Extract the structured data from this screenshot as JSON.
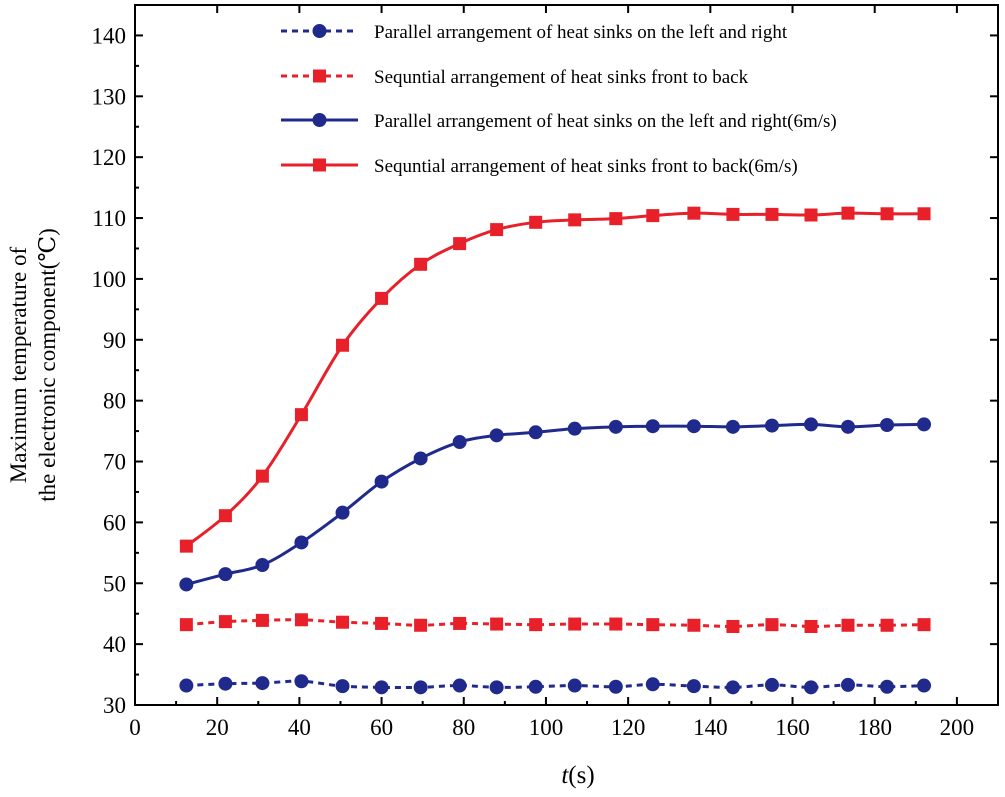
{
  "chart_data": {
    "type": "line",
    "title": "",
    "xlabel_italic": "t",
    "xlabel_unit": "(s)",
    "ylabel_line1": "Maximum temperature of",
    "ylabel_line2": "the electronic component(℃)",
    "xlim": [
      0,
      210
    ],
    "ylim": [
      30,
      145
    ],
    "xticks": [
      0,
      20,
      40,
      60,
      80,
      100,
      120,
      140,
      160,
      180,
      200
    ],
    "yticks": [
      30,
      40,
      50,
      60,
      70,
      80,
      90,
      100,
      110,
      120,
      130,
      140
    ],
    "legend_position": "top-right",
    "series": [
      {
        "name": "Parallel arrangement of heat sinks on the left and right",
        "color": "#1f2a8c",
        "line": "dashed",
        "marker": "circle",
        "x": [
          12.5,
          22,
          31,
          40.5,
          50.5,
          60,
          69.5,
          79,
          88,
          97.5,
          107,
          117,
          126,
          136,
          145.5,
          155,
          164.5,
          173.5,
          183,
          192
        ],
        "y": [
          33.2,
          33.5,
          33.6,
          33.9,
          33.1,
          32.9,
          32.9,
          33.2,
          32.9,
          33.0,
          33.2,
          33.0,
          33.4,
          33.1,
          32.9,
          33.3,
          32.9,
          33.3,
          33.0,
          33.2
        ]
      },
      {
        "name": "Sequntial arrangement of heat sinks front to back",
        "color": "#e8202a",
        "line": "dashed",
        "marker": "square",
        "x": [
          12.5,
          22,
          31,
          40.5,
          50.5,
          60,
          69.5,
          79,
          88,
          97.5,
          107,
          117,
          126,
          136,
          145.5,
          155,
          164.5,
          173.5,
          183,
          192
        ],
        "y": [
          43.2,
          43.7,
          43.9,
          44.0,
          43.6,
          43.4,
          43.1,
          43.4,
          43.3,
          43.2,
          43.3,
          43.3,
          43.2,
          43.1,
          42.9,
          43.2,
          42.9,
          43.1,
          43.1,
          43.2
        ]
      },
      {
        "name": "Parallel arrangement of heat sinks on the left and right(6m/s)",
        "color": "#1f2a8c",
        "line": "solid",
        "marker": "circle",
        "x": [
          12.5,
          22,
          31,
          40.5,
          50.5,
          60,
          69.5,
          79,
          88,
          97.5,
          107,
          117,
          126,
          136,
          145.5,
          155,
          164.5,
          173.5,
          183,
          192
        ],
        "y": [
          49.8,
          51.5,
          53.0,
          56.7,
          61.6,
          66.7,
          70.5,
          73.2,
          74.3,
          74.8,
          75.4,
          75.7,
          75.8,
          75.8,
          75.7,
          75.9,
          76.1,
          75.7,
          76.0,
          76.1
        ]
      },
      {
        "name": "Sequntial arrangement of heat sinks front to back(6m/s)",
        "color": "#e8202a",
        "line": "solid",
        "marker": "square",
        "x": [
          12.5,
          22,
          31,
          40.5,
          50.5,
          60,
          69.5,
          79,
          88,
          97.5,
          107,
          117,
          126,
          136,
          145.5,
          155,
          164.5,
          173.5,
          183,
          192
        ],
        "y": [
          56.1,
          61.1,
          67.6,
          77.7,
          89.1,
          96.8,
          102.4,
          105.8,
          108.1,
          109.3,
          109.7,
          109.9,
          110.4,
          110.8,
          110.6,
          110.6,
          110.5,
          110.8,
          110.7,
          110.7
        ]
      }
    ]
  }
}
